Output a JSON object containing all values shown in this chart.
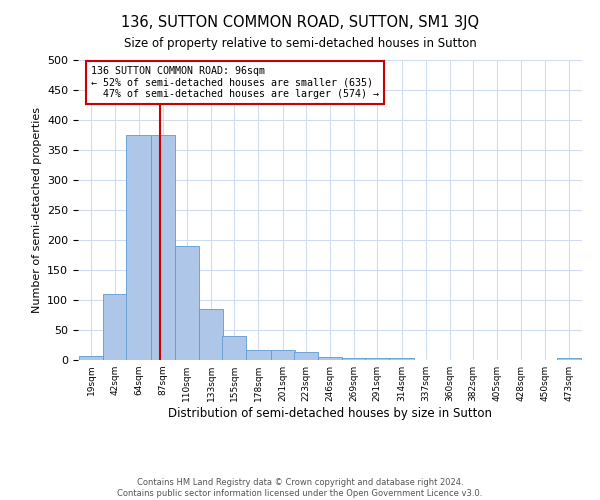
{
  "title": "136, SUTTON COMMON ROAD, SUTTON, SM1 3JQ",
  "subtitle": "Size of property relative to semi-detached houses in Sutton",
  "xlabel": "Distribution of semi-detached houses by size in Sutton",
  "ylabel": "Number of semi-detached properties",
  "bin_edges": [
    19,
    42,
    64,
    87,
    110,
    133,
    155,
    178,
    201,
    223,
    246,
    269,
    291,
    314,
    337,
    360,
    382,
    405,
    428,
    450,
    473
  ],
  "bar_heights": [
    6,
    110,
    375,
    375,
    190,
    85,
    40,
    17,
    17,
    13,
    5,
    4,
    3,
    4,
    0,
    0,
    0,
    0,
    0,
    0,
    4
  ],
  "bar_color": "#AEC6E8",
  "bar_edge_color": "#5B9BD5",
  "property_size": 96,
  "property_label": "136 SUTTON COMMON ROAD: 96sqm",
  "pct_smaller": 52,
  "n_smaller": 635,
  "pct_larger": 47,
  "n_larger": 574,
  "red_line_color": "#CC0000",
  "annotation_box_color": "#CC0000",
  "ylim": [
    0,
    500
  ],
  "yticks": [
    0,
    50,
    100,
    150,
    200,
    250,
    300,
    350,
    400,
    450,
    500
  ],
  "footer_line1": "Contains HM Land Registry data © Crown copyright and database right 2024.",
  "footer_line2": "Contains public sector information licensed under the Open Government Licence v3.0.",
  "background_color": "#ffffff",
  "grid_color": "#D0DCF0"
}
